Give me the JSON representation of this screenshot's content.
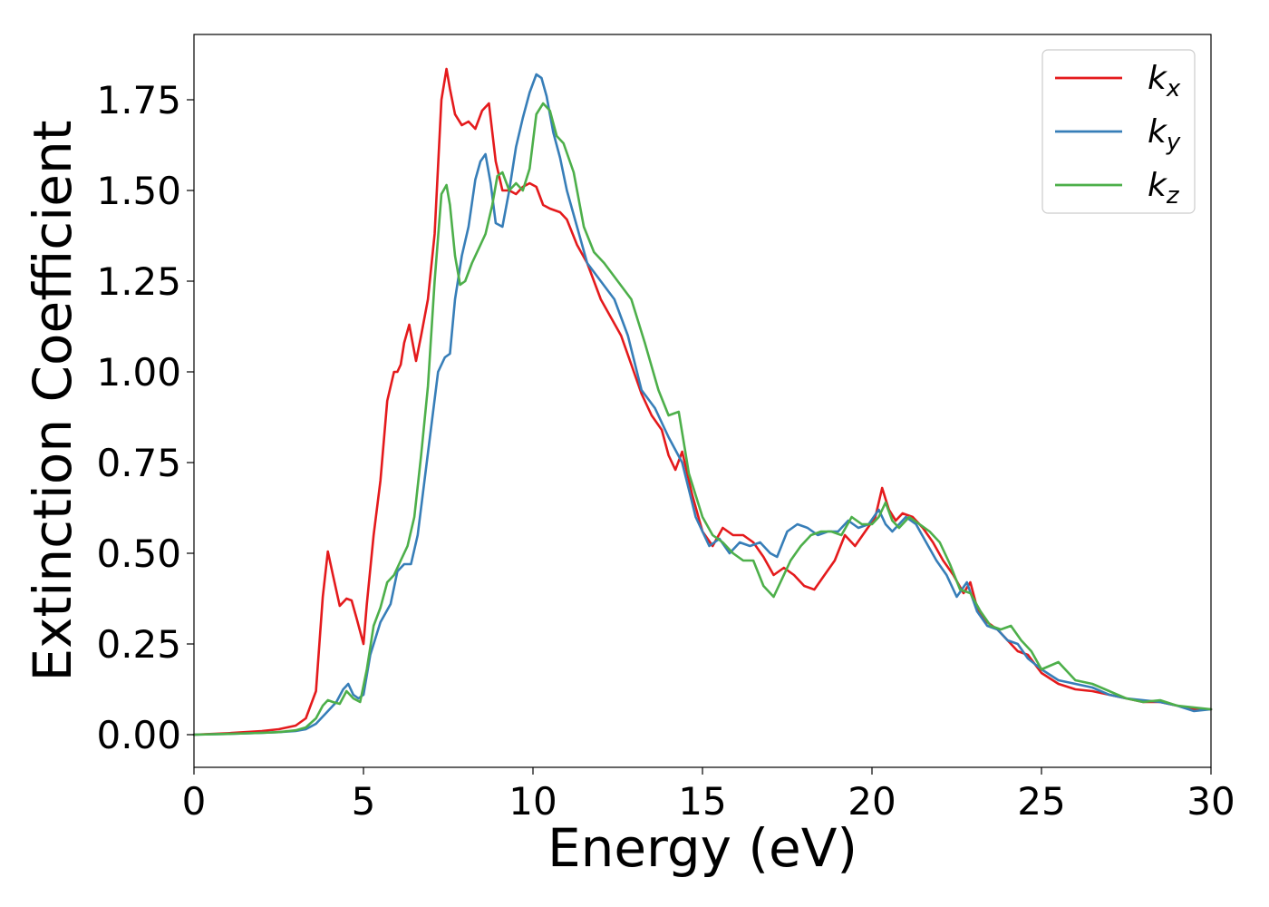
{
  "chart_data": {
    "type": "line",
    "xlabel": "Energy (eV)",
    "ylabel": "Extinction Coefficient",
    "xlim": [
      0,
      30
    ],
    "ylim": [
      -0.09,
      1.93
    ],
    "xticks": [
      "0",
      "5",
      "10",
      "15",
      "20",
      "25",
      "30"
    ],
    "yticks": [
      "0.00",
      "0.25",
      "0.50",
      "0.75",
      "1.00",
      "1.25",
      "1.50",
      "1.75"
    ],
    "grid": false,
    "legend_position": "top-right",
    "series": [
      {
        "name": "k",
        "subscript": "x",
        "color": "#e41a1c",
        "x": [
          0,
          1,
          2,
          2.5,
          3,
          3.3,
          3.6,
          3.8,
          3.95,
          4.1,
          4.3,
          4.5,
          4.65,
          4.8,
          5.0,
          5.1,
          5.3,
          5.5,
          5.7,
          5.9,
          6.0,
          6.1,
          6.2,
          6.35,
          6.45,
          6.55,
          6.7,
          6.9,
          7.1,
          7.3,
          7.45,
          7.55,
          7.7,
          7.9,
          8.1,
          8.3,
          8.5,
          8.7,
          8.9,
          9.1,
          9.3,
          9.5,
          9.7,
          9.9,
          10.1,
          10.3,
          10.5,
          10.8,
          11.0,
          11.3,
          11.6,
          12.0,
          12.3,
          12.6,
          12.9,
          13.2,
          13.5,
          13.8,
          14.0,
          14.2,
          14.4,
          14.7,
          15.0,
          15.3,
          15.6,
          15.9,
          16.2,
          16.5,
          16.8,
          17.1,
          17.4,
          17.7,
          18.0,
          18.3,
          18.6,
          18.9,
          19.2,
          19.5,
          19.8,
          20.1,
          20.3,
          20.5,
          20.7,
          20.9,
          21.2,
          21.5,
          21.8,
          22.1,
          22.4,
          22.7,
          22.9,
          23.1,
          23.4,
          23.7,
          24.0,
          24.3,
          24.6,
          25.0,
          25.5,
          26.0,
          26.5,
          27.0,
          27.5,
          28.0,
          28.5,
          29.0,
          29.5,
          30.0
        ],
        "values": [
          0.0,
          0.004,
          0.01,
          0.015,
          0.025,
          0.045,
          0.12,
          0.38,
          0.505,
          0.44,
          0.355,
          0.375,
          0.37,
          0.32,
          0.25,
          0.36,
          0.55,
          0.7,
          0.92,
          1.0,
          1.0,
          1.02,
          1.08,
          1.13,
          1.08,
          1.03,
          1.1,
          1.2,
          1.38,
          1.75,
          1.835,
          1.78,
          1.71,
          1.68,
          1.69,
          1.67,
          1.72,
          1.74,
          1.58,
          1.5,
          1.5,
          1.49,
          1.51,
          1.52,
          1.51,
          1.46,
          1.45,
          1.44,
          1.42,
          1.35,
          1.3,
          1.2,
          1.15,
          1.1,
          1.02,
          0.94,
          0.88,
          0.84,
          0.77,
          0.73,
          0.78,
          0.66,
          0.56,
          0.52,
          0.57,
          0.55,
          0.55,
          0.53,
          0.49,
          0.44,
          0.46,
          0.44,
          0.41,
          0.4,
          0.44,
          0.48,
          0.55,
          0.52,
          0.56,
          0.6,
          0.68,
          0.62,
          0.59,
          0.61,
          0.6,
          0.57,
          0.53,
          0.48,
          0.44,
          0.39,
          0.42,
          0.35,
          0.31,
          0.29,
          0.26,
          0.23,
          0.22,
          0.17,
          0.14,
          0.125,
          0.12,
          0.11,
          0.1,
          0.09,
          0.09,
          0.08,
          0.07,
          0.07
        ]
      },
      {
        "name": "k",
        "subscript": "y",
        "color": "#377eb8",
        "x": [
          0,
          1,
          2,
          2.5,
          3,
          3.3,
          3.6,
          3.9,
          4.2,
          4.4,
          4.55,
          4.7,
          4.85,
          5.0,
          5.2,
          5.5,
          5.8,
          6.0,
          6.2,
          6.4,
          6.6,
          6.8,
          7.0,
          7.2,
          7.4,
          7.55,
          7.7,
          7.9,
          8.1,
          8.3,
          8.45,
          8.6,
          8.75,
          8.9,
          9.1,
          9.3,
          9.5,
          9.7,
          9.9,
          10.1,
          10.25,
          10.4,
          10.6,
          10.8,
          11.0,
          11.3,
          11.6,
          12.0,
          12.4,
          12.8,
          13.2,
          13.6,
          14.0,
          14.4,
          14.8,
          15.2,
          15.5,
          15.8,
          16.1,
          16.4,
          16.7,
          17.0,
          17.2,
          17.5,
          17.8,
          18.1,
          18.4,
          18.7,
          19.0,
          19.3,
          19.6,
          19.9,
          20.2,
          20.4,
          20.6,
          20.8,
          21.0,
          21.3,
          21.6,
          21.9,
          22.2,
          22.5,
          22.8,
          23.1,
          23.4,
          23.7,
          24.0,
          24.3,
          24.6,
          25.0,
          25.5,
          26.0,
          26.5,
          27.0,
          27.5,
          28.0,
          28.5,
          29.0,
          29.5,
          30.0
        ],
        "values": [
          0.0,
          0.002,
          0.005,
          0.007,
          0.01,
          0.015,
          0.03,
          0.06,
          0.09,
          0.125,
          0.14,
          0.11,
          0.1,
          0.11,
          0.22,
          0.31,
          0.36,
          0.45,
          0.47,
          0.47,
          0.55,
          0.7,
          0.85,
          1.0,
          1.04,
          1.05,
          1.2,
          1.32,
          1.4,
          1.53,
          1.58,
          1.6,
          1.52,
          1.41,
          1.4,
          1.5,
          1.62,
          1.7,
          1.77,
          1.82,
          1.81,
          1.76,
          1.66,
          1.59,
          1.5,
          1.4,
          1.3,
          1.25,
          1.2,
          1.1,
          0.95,
          0.9,
          0.82,
          0.75,
          0.6,
          0.52,
          0.54,
          0.5,
          0.53,
          0.52,
          0.53,
          0.5,
          0.49,
          0.56,
          0.58,
          0.57,
          0.55,
          0.56,
          0.56,
          0.59,
          0.57,
          0.58,
          0.62,
          0.58,
          0.56,
          0.58,
          0.6,
          0.58,
          0.53,
          0.48,
          0.44,
          0.38,
          0.42,
          0.34,
          0.3,
          0.29,
          0.26,
          0.25,
          0.21,
          0.18,
          0.15,
          0.14,
          0.13,
          0.11,
          0.1,
          0.095,
          0.09,
          0.08,
          0.065,
          0.07
        ]
      },
      {
        "name": "k",
        "subscript": "z",
        "color": "#4daf4a",
        "x": [
          0,
          1,
          2,
          2.5,
          3,
          3.3,
          3.6,
          3.8,
          3.95,
          4.1,
          4.3,
          4.5,
          4.7,
          4.9,
          5.1,
          5.3,
          5.5,
          5.7,
          5.9,
          6.1,
          6.3,
          6.5,
          6.7,
          6.9,
          7.1,
          7.3,
          7.45,
          7.55,
          7.7,
          7.85,
          8.0,
          8.2,
          8.4,
          8.6,
          8.8,
          8.95,
          9.1,
          9.3,
          9.5,
          9.7,
          9.9,
          10.1,
          10.3,
          10.5,
          10.7,
          10.9,
          11.2,
          11.5,
          11.8,
          12.1,
          12.5,
          12.9,
          13.3,
          13.7,
          14.0,
          14.3,
          14.6,
          15.0,
          15.3,
          15.6,
          15.9,
          16.2,
          16.5,
          16.8,
          17.1,
          17.3,
          17.6,
          17.9,
          18.2,
          18.5,
          18.8,
          19.1,
          19.4,
          19.7,
          20.0,
          20.2,
          20.4,
          20.6,
          20.8,
          21.1,
          21.4,
          21.7,
          22.0,
          22.3,
          22.6,
          22.9,
          23.2,
          23.5,
          23.8,
          24.1,
          24.4,
          24.7,
          25.0,
          25.5,
          26.0,
          26.5,
          27.0,
          27.5,
          28.0,
          28.5,
          29.0,
          29.5,
          30.0
        ],
        "values": [
          0.0,
          0.002,
          0.005,
          0.007,
          0.012,
          0.02,
          0.045,
          0.08,
          0.095,
          0.09,
          0.085,
          0.12,
          0.1,
          0.09,
          0.18,
          0.3,
          0.35,
          0.42,
          0.44,
          0.48,
          0.52,
          0.6,
          0.77,
          0.96,
          1.25,
          1.49,
          1.515,
          1.46,
          1.32,
          1.24,
          1.25,
          1.3,
          1.34,
          1.38,
          1.46,
          1.54,
          1.55,
          1.5,
          1.52,
          1.5,
          1.56,
          1.71,
          1.74,
          1.72,
          1.65,
          1.63,
          1.55,
          1.4,
          1.33,
          1.3,
          1.25,
          1.2,
          1.08,
          0.95,
          0.88,
          0.89,
          0.72,
          0.6,
          0.55,
          0.53,
          0.5,
          0.48,
          0.48,
          0.41,
          0.38,
          0.42,
          0.48,
          0.52,
          0.55,
          0.56,
          0.56,
          0.55,
          0.6,
          0.58,
          0.58,
          0.6,
          0.64,
          0.59,
          0.57,
          0.6,
          0.58,
          0.56,
          0.53,
          0.47,
          0.4,
          0.39,
          0.34,
          0.3,
          0.29,
          0.3,
          0.26,
          0.23,
          0.18,
          0.2,
          0.15,
          0.14,
          0.12,
          0.1,
          0.09,
          0.095,
          0.08,
          0.075,
          0.07
        ]
      }
    ]
  }
}
